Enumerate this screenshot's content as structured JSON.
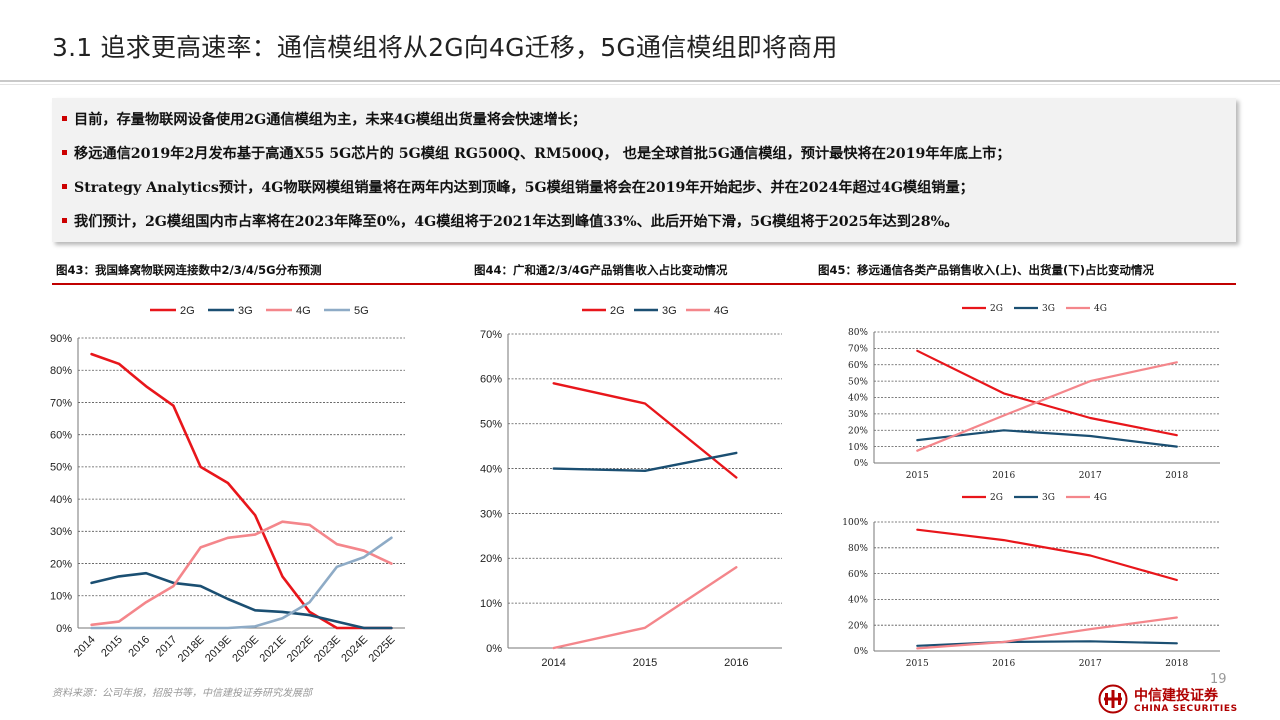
{
  "header": {
    "title": "3.1 追求更高速率：通信模组将从2G向4G迁移，5G通信模组即将商用"
  },
  "bullets": [
    "目前，存量物联网设备使用2G通信模组为主，未来4G模组出货量将会快速增长；",
    "移远通信2019年2月发布基于高通X55 5G芯片的 5G模组 RG500Q、RM500Q，  也是全球首批5G通信模组，预计最快将在2019年年底上市；",
    "Strategy Analytics预计，4G物联网模组销量将在两年内达到顶峰，5G模组销量将会在2019年开始起步、并在2024年超过4G模组销量；",
    "我们预计，2G模组国内市占率将在2023年降至0%，4G模组将于2021年达到峰值33%、此后开始下滑，5G模组将于2025年达到28%。"
  ],
  "figures": {
    "fig43": "图43：我国蜂窝物联网连接数中2/3/4/5G分布预测",
    "fig44": "图44：广和通2/3/4G产品销售收入占比变动情况",
    "fig45": "图45：移远通信各类产品销售收入(上)、出货量(下)占比变动情况"
  },
  "colors": {
    "2G": "#e8161b",
    "3G": "#1b4f72",
    "4G": "#f4868b",
    "5G": "#8eabc6",
    "accent": "#c00000"
  },
  "chart_data": [
    {
      "id": "fig43",
      "type": "line",
      "x": [
        "2014",
        "2015",
        "2016",
        "2017",
        "2018E",
        "2019E",
        "2020E",
        "2021E",
        "2022E",
        "2023E",
        "2024E",
        "2025E"
      ],
      "ylim": [
        0,
        90
      ],
      "yticks": [
        "0%",
        "10%",
        "20%",
        "30%",
        "40%",
        "50%",
        "60%",
        "70%",
        "80%",
        "90%"
      ],
      "grid": true,
      "legend": "top",
      "series": [
        {
          "name": "2G",
          "values": [
            85,
            82,
            75,
            69,
            50,
            45,
            35,
            16,
            5,
            0,
            0,
            0
          ]
        },
        {
          "name": "3G",
          "values": [
            14,
            16,
            17,
            14,
            13,
            9,
            5.5,
            5,
            4,
            2,
            0,
            0
          ]
        },
        {
          "name": "4G",
          "values": [
            1,
            2,
            8,
            13,
            25,
            28,
            29,
            33,
            32,
            26,
            24,
            20
          ]
        },
        {
          "name": "5G",
          "values": [
            0,
            0,
            0,
            0,
            0,
            0,
            0.5,
            3,
            8,
            19,
            22,
            28
          ]
        }
      ]
    },
    {
      "id": "fig44",
      "type": "line",
      "x": [
        "2014",
        "2015",
        "2016"
      ],
      "ylim": [
        0,
        70
      ],
      "yticks": [
        "0%",
        "10%",
        "20%",
        "30%",
        "40%",
        "50%",
        "60%",
        "70%"
      ],
      "grid": true,
      "legend": "top",
      "series": [
        {
          "name": "2G",
          "values": [
            59,
            54.5,
            38
          ]
        },
        {
          "name": "3G",
          "values": [
            40,
            39.5,
            43.5
          ]
        },
        {
          "name": "4G",
          "values": [
            0,
            4.5,
            18
          ]
        }
      ]
    },
    {
      "id": "fig45-revenue",
      "type": "line",
      "x": [
        "2015",
        "2016",
        "2017",
        "2018"
      ],
      "ylim": [
        0,
        80
      ],
      "yticks": [
        "0%",
        "10%",
        "20%",
        "30%",
        "40%",
        "50%",
        "60%",
        "70%",
        "80%"
      ],
      "grid": true,
      "legend": "top",
      "series": [
        {
          "name": "2G",
          "values": [
            68.5,
            42.5,
            27.5,
            17
          ]
        },
        {
          "name": "3G",
          "values": [
            14,
            20,
            16.5,
            10
          ]
        },
        {
          "name": "4G",
          "values": [
            7.5,
            29,
            50,
            61.5
          ]
        }
      ]
    },
    {
      "id": "fig45-shipment",
      "type": "line",
      "x": [
        "2015",
        "2016",
        "2017",
        "2018"
      ],
      "ylim": [
        0,
        100
      ],
      "yticks": [
        "0%",
        "20%",
        "40%",
        "60%",
        "80%",
        "100%"
      ],
      "grid": true,
      "legend": "top",
      "series": [
        {
          "name": "2G",
          "values": [
            94,
            86,
            74,
            55
          ]
        },
        {
          "name": "3G",
          "values": [
            4,
            7,
            7.5,
            6
          ]
        },
        {
          "name": "4G",
          "values": [
            2,
            7,
            17,
            26
          ]
        }
      ]
    }
  ],
  "footer": {
    "source": "资料来源：公司年报，招股书等，中信建投证券研究发展部",
    "page": "19",
    "logo_cn": "中信建投证券",
    "logo_en": "CHINA SECURITIES"
  }
}
